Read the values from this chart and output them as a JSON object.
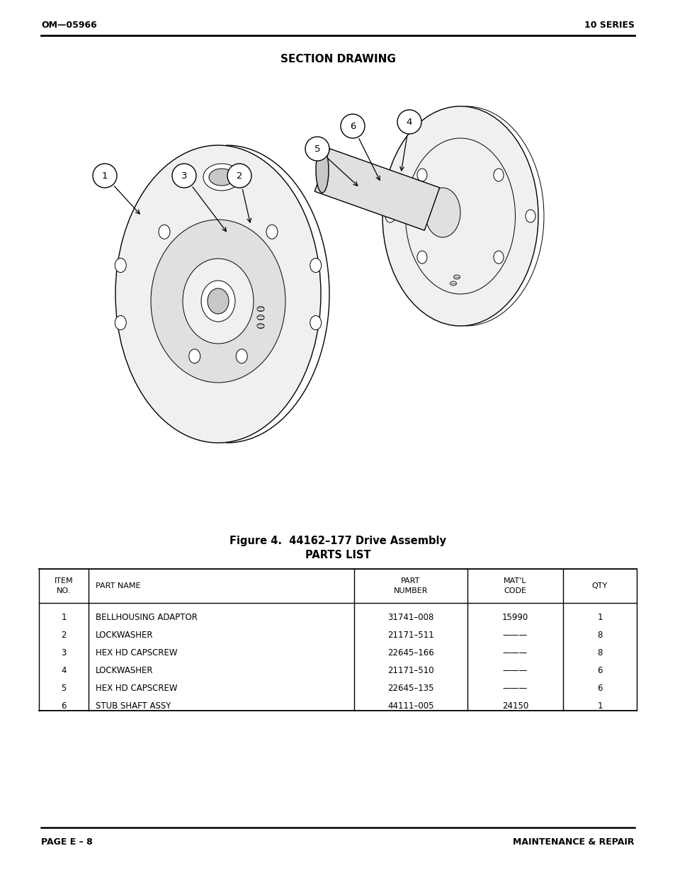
{
  "header_left": "OM—05966",
  "header_right": "10 SERIES",
  "section_title": "SECTION DRAWING",
  "figure_caption_line1": "Figure 4.  44162–177 Drive Assembly",
  "figure_caption_line2": "PARTS LIST",
  "table_headers_line1": [
    "ITEM",
    "PART NAME",
    "PART",
    "MAT'L",
    "QTY"
  ],
  "table_headers_line2": [
    "NO.",
    "",
    "NUMBER",
    "CODE",
    ""
  ],
  "table_rows": [
    [
      "1",
      "BELLHOUSING ADAPTOR",
      "31741–008",
      "15990",
      "1"
    ],
    [
      "2",
      "LOCKWASHER",
      "21171–511",
      "———",
      "8"
    ],
    [
      "3",
      "HEX HD CAPSCREW",
      "22645–166",
      "———",
      "8"
    ],
    [
      "4",
      "LOCKWASHER",
      "21171–510",
      "———",
      "6"
    ],
    [
      "5",
      "HEX HD CAPSCREW",
      "22645–135",
      "———",
      "6"
    ],
    [
      "6",
      "STUB SHAFT ASSY",
      "44111–005",
      "24150",
      "1"
    ]
  ],
  "footer_left": "PAGE E – 8",
  "footer_right": "MAINTENANCE & REPAIR",
  "bg_color": "#ffffff",
  "text_color": "#000000"
}
